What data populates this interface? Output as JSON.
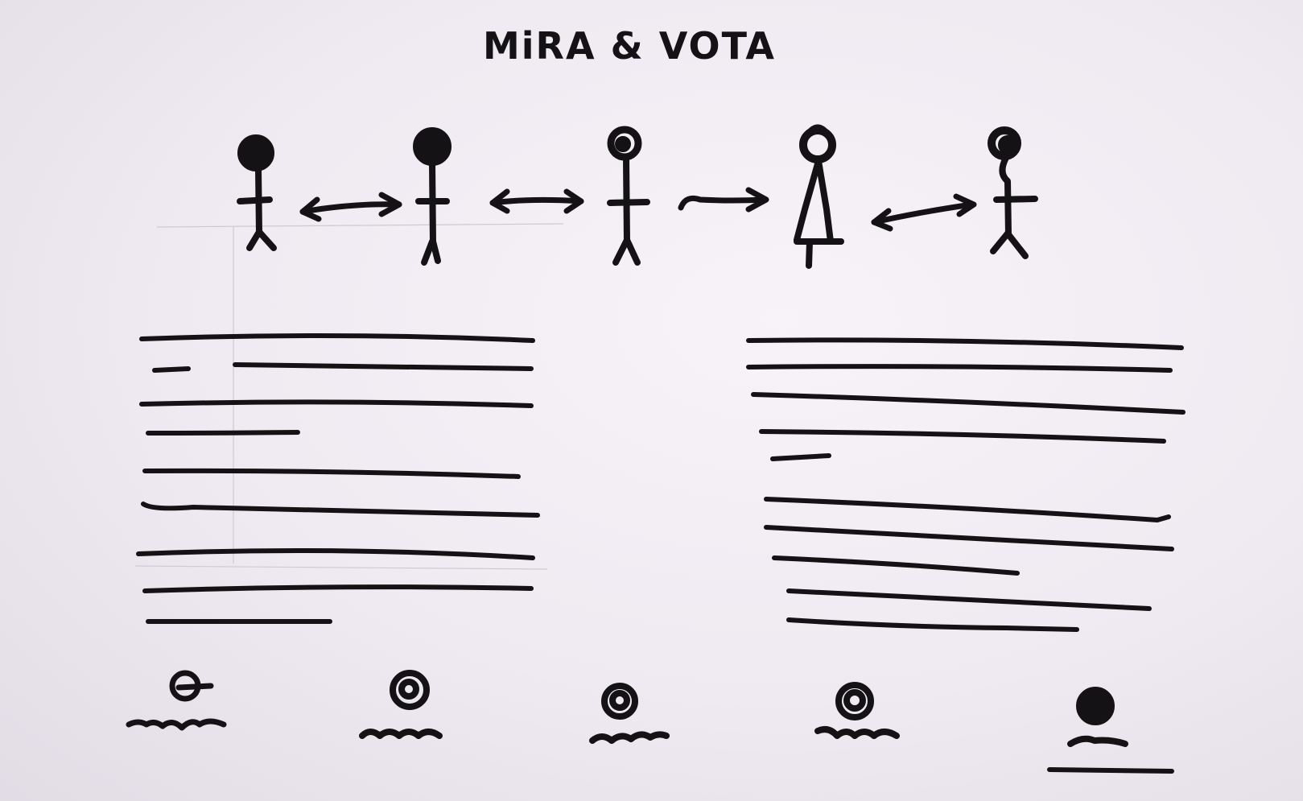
{
  "title": "MiRA & VOTA",
  "ink_color": "#141214",
  "paper_color": "#f4f0f5",
  "figures": [
    {
      "name": "stick-figure-1"
    },
    {
      "name": "stick-figure-2"
    },
    {
      "name": "stick-figure-3"
    },
    {
      "name": "stick-figure-4"
    },
    {
      "name": "stick-figure-5"
    }
  ],
  "arrows": [
    {
      "name": "double-arrow-1",
      "direction": "both"
    },
    {
      "name": "double-arrow-2",
      "direction": "both"
    },
    {
      "name": "arrow-3",
      "direction": "right"
    },
    {
      "name": "double-arrow-4",
      "direction": "both"
    }
  ],
  "text_blocks": [
    {
      "name": "text-column-left",
      "line_count": 10
    },
    {
      "name": "text-column-right",
      "line_count": 10
    }
  ],
  "vote_options": [
    {
      "name": "vote-option-1",
      "selected": false
    },
    {
      "name": "vote-option-2",
      "selected": false
    },
    {
      "name": "vote-option-3",
      "selected": false
    },
    {
      "name": "vote-option-4",
      "selected": false
    },
    {
      "name": "vote-option-5",
      "selected": true
    }
  ]
}
